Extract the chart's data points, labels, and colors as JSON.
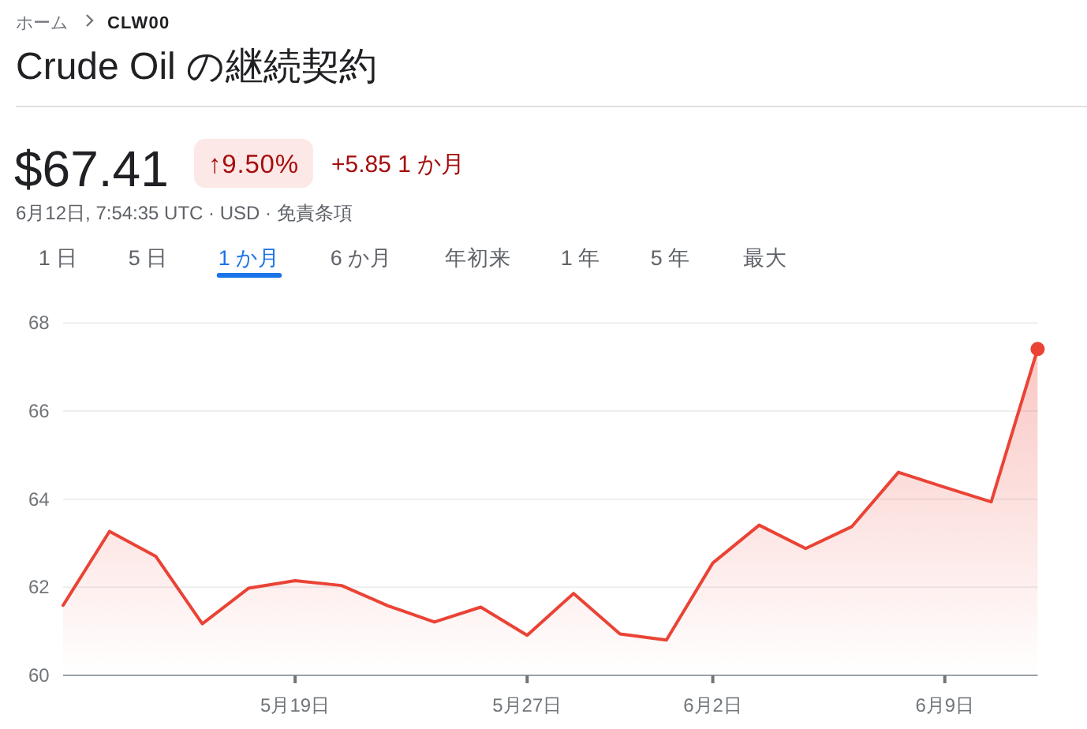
{
  "chart_data": {
    "type": "area",
    "title": "Crude Oil の継続契約",
    "annotations": [
      "ホーム",
      "CLW00",
      "$67.41",
      "↑9.50%",
      "+5.85 1 か月",
      "6月12日, 7:54:35 UTC · USD · 免責条項",
      "1 日",
      "5 日",
      "1 か月",
      "6 か月",
      "年初来",
      "1 年",
      "5 年",
      "最大"
    ],
    "categories": [
      null,
      null,
      null,
      null,
      null,
      "5月19日",
      null,
      null,
      null,
      null,
      "5月27日",
      null,
      null,
      null,
      "6月2日",
      null,
      null,
      null,
      null,
      "6月9日",
      null,
      null
    ],
    "series": [
      {
        "color": "#ea4335",
        "values": [
          61.59,
          63.27,
          62.7,
          61.17,
          61.98,
          62.15,
          62.04,
          61.58,
          61.21,
          61.55,
          60.91,
          61.86,
          60.94,
          60.8,
          62.55,
          63.41,
          62.88,
          63.38,
          64.61,
          64.27,
          63.94,
          67.41
        ]
      },
      {
        "type": "scatter",
        "color": "#ea4335",
        "values": [
          null,
          null,
          null,
          null,
          null,
          null,
          null,
          null,
          null,
          null,
          null,
          null,
          null,
          null,
          null,
          null,
          null,
          null,
          null,
          null,
          null,
          67.41
        ]
      }
    ],
    "ylim": [
      60,
      68
    ],
    "yticks": [
      60,
      62,
      64,
      66,
      68
    ],
    "grid": "y"
  }
}
